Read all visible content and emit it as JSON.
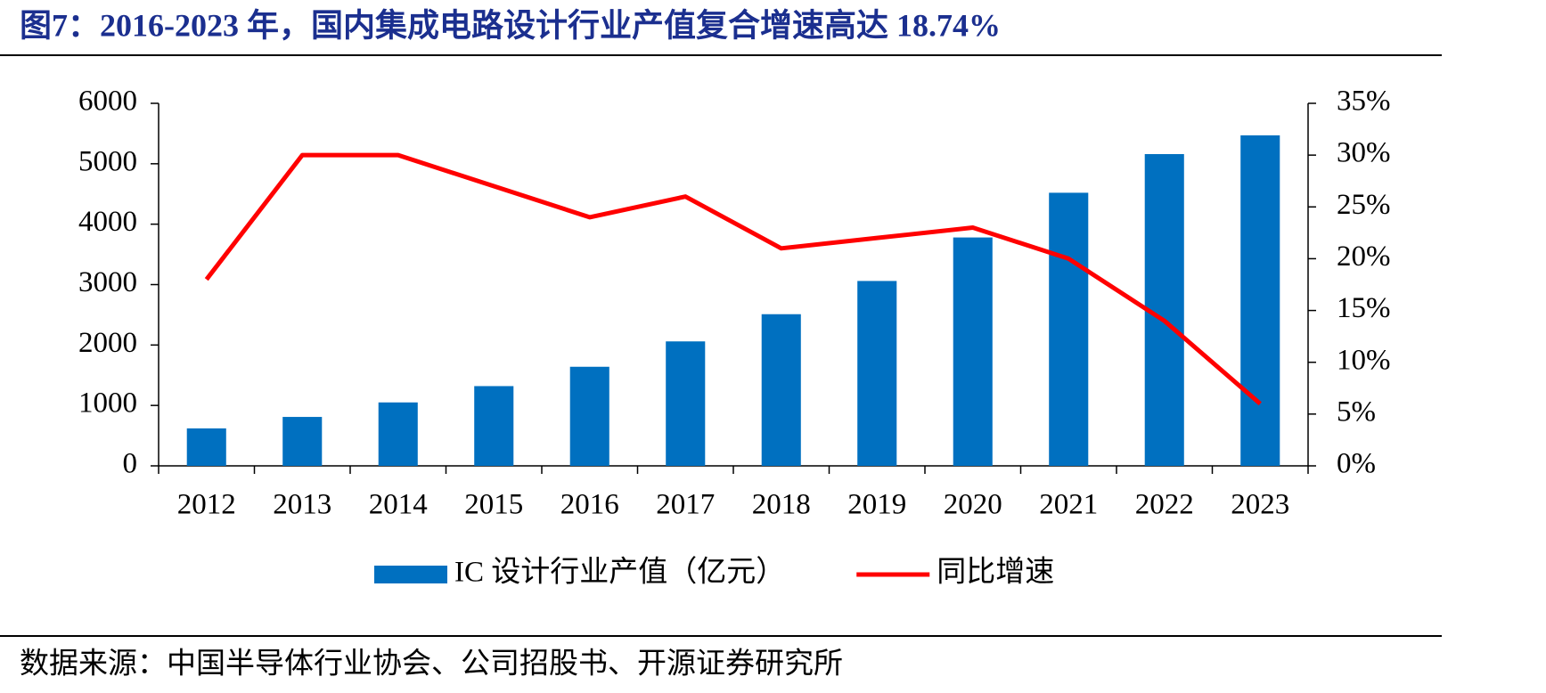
{
  "chart_data": {
    "type": "bar",
    "title": "图7：2016-2023 年，国内集成电路设计行业产值复合增速高达 18.74%",
    "source": "数据来源：中国半导体行业协会、公司招股书、开源证券研究所",
    "categories": [
      "2012",
      "2013",
      "2014",
      "2015",
      "2016",
      "2017",
      "2018",
      "2019",
      "2020",
      "2021",
      "2022",
      "2023"
    ],
    "series": [
      {
        "name": "IC 设计行业产值（亿元）",
        "type": "bar",
        "color": "#0070c0",
        "values": [
          620,
          810,
          1050,
          1320,
          1640,
          2060,
          2510,
          3060,
          3780,
          4520,
          5160,
          5470
        ]
      },
      {
        "name": "同比增速",
        "type": "line",
        "axis": "y2",
        "color": "#ff0000",
        "values": [
          18,
          30,
          30,
          27,
          24,
          26,
          21,
          22,
          23,
          20,
          14,
          6
        ]
      }
    ],
    "ylim": [
      0,
      6000
    ],
    "yticks": [
      0,
      1000,
      2000,
      3000,
      4000,
      5000,
      6000
    ],
    "y2lim": [
      0,
      35
    ],
    "y2ticks": [
      {
        "value": 0,
        "label": "0%"
      },
      {
        "value": 5,
        "label": "5%"
      },
      {
        "value": 10,
        "label": "10%"
      },
      {
        "value": 15,
        "label": "15%"
      },
      {
        "value": 20,
        "label": "20%"
      },
      {
        "value": 25,
        "label": "25%"
      },
      {
        "value": 30,
        "label": "30%"
      },
      {
        "value": 35,
        "label": "35%"
      }
    ],
    "grid": false,
    "legend": "bottom"
  }
}
